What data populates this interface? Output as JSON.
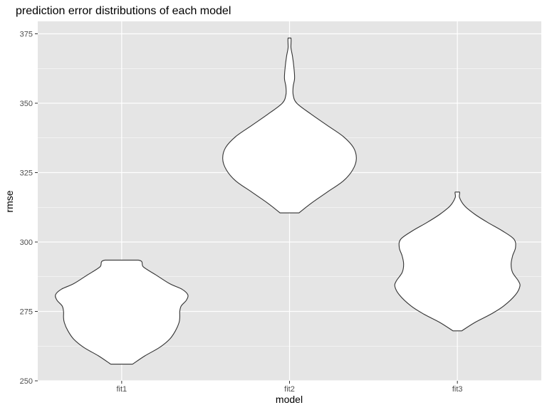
{
  "chart_data": {
    "type": "violin",
    "title": "prediction error distributions of each model",
    "xlabel": "model",
    "ylabel": "rmse",
    "ylim": [
      250,
      380
    ],
    "yticks": [
      250,
      275,
      300,
      325,
      350,
      375
    ],
    "ytick_labels": [
      "250",
      "275",
      "300",
      "325",
      "350",
      "375"
    ],
    "grid": true,
    "colors": {
      "panel": "#e5e5e5",
      "grid_major": "#ffffff",
      "violin_fill": "#ffffff",
      "violin_stroke": "#333333"
    },
    "categories": [
      "fit1",
      "fit2",
      "fit3"
    ],
    "violins": [
      {
        "category": "fit1",
        "min": 256,
        "max": 293.5,
        "profile": [
          [
            256,
            0.15
          ],
          [
            259,
            0.32
          ],
          [
            262,
            0.52
          ],
          [
            265,
            0.66
          ],
          [
            268,
            0.74
          ],
          [
            271,
            0.79
          ],
          [
            273,
            0.8
          ],
          [
            275,
            0.8
          ],
          [
            277,
            0.82
          ],
          [
            279,
            0.89
          ],
          [
            281,
            0.91
          ],
          [
            283,
            0.83
          ],
          [
            285,
            0.66
          ],
          [
            288,
            0.48
          ],
          [
            291,
            0.3
          ],
          [
            293.5,
            0.23
          ]
        ]
      },
      {
        "category": "fit2",
        "min": 310.5,
        "max": 373.5,
        "profile": [
          [
            310.5,
            0.13
          ],
          [
            314,
            0.3
          ],
          [
            318,
            0.52
          ],
          [
            322,
            0.74
          ],
          [
            326,
            0.87
          ],
          [
            330,
            0.92
          ],
          [
            334,
            0.88
          ],
          [
            338,
            0.74
          ],
          [
            342,
            0.52
          ],
          [
            346,
            0.3
          ],
          [
            350,
            0.1
          ],
          [
            353,
            0.05
          ],
          [
            356,
            0.05
          ],
          [
            359,
            0.07
          ],
          [
            363,
            0.06
          ],
          [
            367,
            0.04
          ],
          [
            370,
            0.02
          ],
          [
            373.5,
            0.02
          ]
        ]
      },
      {
        "category": "fit3",
        "min": 268,
        "max": 318,
        "profile": [
          [
            268,
            0.06
          ],
          [
            271,
            0.24
          ],
          [
            274,
            0.46
          ],
          [
            277,
            0.64
          ],
          [
            281,
            0.8
          ],
          [
            284,
            0.86
          ],
          [
            286,
            0.84
          ],
          [
            289,
            0.76
          ],
          [
            292,
            0.74
          ],
          [
            295,
            0.76
          ],
          [
            298,
            0.8
          ],
          [
            301,
            0.78
          ],
          [
            304,
            0.62
          ],
          [
            307,
            0.42
          ],
          [
            310,
            0.24
          ],
          [
            313,
            0.1
          ],
          [
            316,
            0.03
          ],
          [
            318,
            0.03
          ]
        ]
      }
    ]
  }
}
